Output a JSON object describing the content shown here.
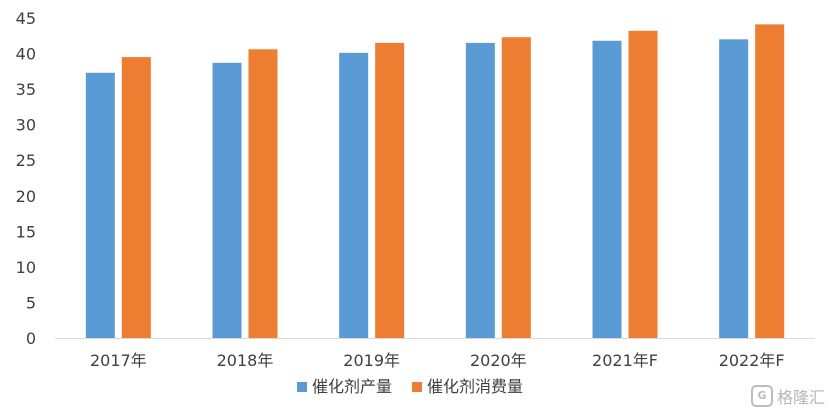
{
  "chart_data": {
    "type": "bar",
    "categories": [
      "2017年",
      "2018年",
      "2019年",
      "2020年",
      "2021年F",
      "2022年F"
    ],
    "series": [
      {
        "name": "催化剂产量",
        "color": "#5B9BD5",
        "values": [
          37.3,
          38.7,
          40.1,
          41.5,
          41.8,
          42.0
        ]
      },
      {
        "name": "催化剂消费量",
        "color": "#ED7D31",
        "values": [
          39.5,
          40.6,
          41.5,
          42.3,
          43.2,
          44.1
        ]
      }
    ],
    "title": "",
    "xlabel": "",
    "ylabel": "",
    "ylim": [
      0,
      45
    ],
    "yticks": [
      0,
      5,
      10,
      15,
      20,
      25,
      30,
      35,
      40,
      45
    ],
    "grid": false,
    "legend": "bottom"
  },
  "watermark": {
    "logo_text": "G",
    "text": "格隆汇"
  }
}
